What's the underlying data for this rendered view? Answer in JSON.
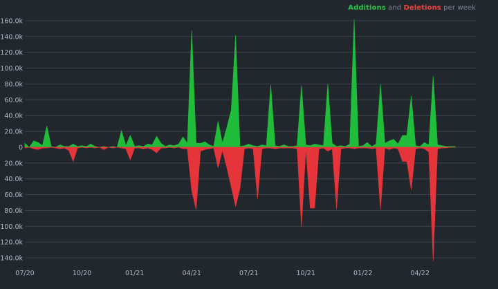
{
  "legend": {
    "additions_label": "Additions",
    "and_label": "and",
    "deletions_label": "Deletions",
    "suffix_label": "per week"
  },
  "colors": {
    "background": "#22272e",
    "additions": "#1fbd3a",
    "deletions": "#e5353a",
    "grid": "#444c56",
    "text": "#adbac7"
  },
  "chart_data": {
    "type": "area",
    "title": "",
    "xlabel": "",
    "ylabel": "",
    "ylim": [
      -140000,
      160000
    ],
    "grid": true,
    "legend_position": "top-right",
    "y_ticks": [
      {
        "value": 160000,
        "label": "160.0k"
      },
      {
        "value": 140000,
        "label": "140.0k"
      },
      {
        "value": 120000,
        "label": "120.0k"
      },
      {
        "value": 100000,
        "label": "100.0k"
      },
      {
        "value": 80000,
        "label": "80.0k"
      },
      {
        "value": 60000,
        "label": "60.0k"
      },
      {
        "value": 40000,
        "label": "40.0k"
      },
      {
        "value": 20000,
        "label": "20.0k"
      },
      {
        "value": 0,
        "label": "0"
      },
      {
        "value": -20000,
        "label": "20.0k"
      },
      {
        "value": -40000,
        "label": "40.0k"
      },
      {
        "value": -60000,
        "label": "60.0k"
      },
      {
        "value": -80000,
        "label": "80.0k"
      },
      {
        "value": -100000,
        "label": "100.0k"
      },
      {
        "value": -120000,
        "label": "120.0k"
      },
      {
        "value": -140000,
        "label": "140.0k"
      }
    ],
    "x_ticks": [
      {
        "week": 0,
        "label": "07/20"
      },
      {
        "week": 13,
        "label": "10/20"
      },
      {
        "week": 25,
        "label": "01/21"
      },
      {
        "week": 38,
        "label": "04/21"
      },
      {
        "week": 51,
        "label": "07/21"
      },
      {
        "week": 64,
        "label": "10/21"
      },
      {
        "week": 77,
        "label": "01/22"
      },
      {
        "week": 90,
        "label": "04/22"
      }
    ],
    "weeks": 99,
    "series": [
      {
        "name": "Additions",
        "values": [
          5000,
          0,
          8000,
          6000,
          2000,
          27000,
          1000,
          0,
          3000,
          1000,
          1000,
          4000,
          1000,
          2000,
          1000,
          4000,
          1000,
          0,
          1000,
          0,
          1000,
          0,
          21000,
          2000,
          15000,
          1000,
          2000,
          1000,
          4000,
          3000,
          14000,
          5000,
          1000,
          3000,
          2000,
          4000,
          13000,
          5000,
          148000,
          5000,
          5000,
          7000,
          3000,
          1000,
          33000,
          5000,
          25000,
          47000,
          142000,
          1000,
          2000,
          4000,
          2000,
          1000,
          3000,
          2000,
          79000,
          2000,
          1000,
          3000,
          1000,
          1000,
          2000,
          78000,
          3000,
          2000,
          4000,
          3000,
          2000,
          80000,
          5000,
          1000,
          2000,
          1000,
          4000,
          162000,
          1000,
          2000,
          6000,
          1000,
          4000,
          80000,
          5000,
          8000,
          10000,
          4000,
          15000,
          15000,
          65000,
          2000,
          1000,
          6000,
          3000,
          90000,
          3000,
          2000,
          1000,
          1000,
          1000
        ],
        "deletions": [
          1000,
          0,
          2000,
          3000,
          1000,
          1000,
          0,
          1000,
          2000,
          1000,
          4000,
          18000,
          1000,
          0,
          1000,
          0,
          1000,
          0,
          3000,
          0,
          1000,
          0,
          1000,
          2000,
          16000,
          1000,
          1000,
          2000,
          1000,
          3000,
          7000,
          1000,
          1000,
          0,
          1000,
          0,
          2000,
          2000,
          55000,
          79000,
          5000,
          3000,
          2000,
          1000,
          26000,
          4000,
          26000,
          50000,
          75000,
          52000,
          2000,
          1000,
          2000,
          65000,
          2000,
          1000,
          1000,
          2000,
          1000,
          1000,
          1000,
          1000,
          2000,
          101000,
          2000,
          77000,
          77000,
          2000,
          1000,
          5000,
          2000,
          78000,
          2000,
          1000,
          1000,
          2000,
          1000,
          1000,
          1000,
          2000,
          1000,
          79000,
          1000,
          3000,
          1000,
          2000,
          18000,
          18000,
          54000,
          2000,
          1000,
          2000,
          6000,
          144000,
          2000,
          1000,
          1000,
          0,
          0
        ]
      }
    ]
  }
}
